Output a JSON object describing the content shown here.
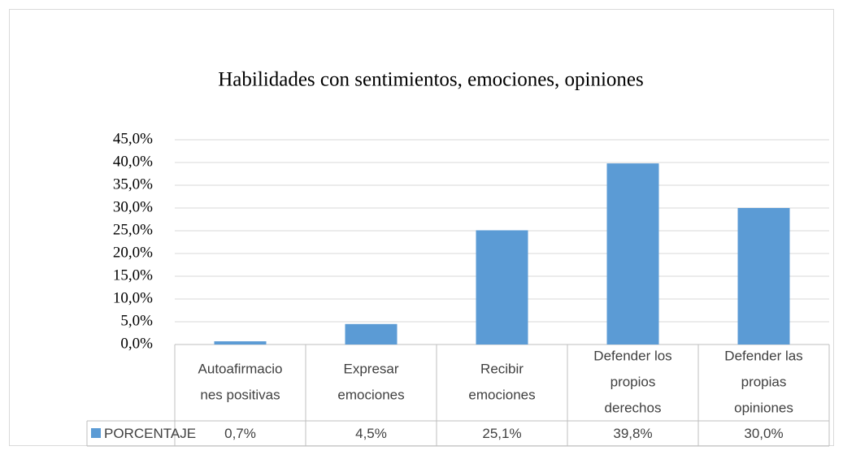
{
  "chart_data": {
    "type": "bar",
    "title": "Habilidades con sentimientos, emociones, opiniones",
    "categories": [
      [
        "Autoafirmacio",
        "nes positivas"
      ],
      [
        "Expresar",
        "emociones"
      ],
      [
        "Recibir",
        "emociones"
      ],
      [
        "Defender los",
        "propios",
        "derechos"
      ],
      [
        "Defender las",
        "propias",
        "opiniones"
      ]
    ],
    "series": [
      {
        "name": "PORCENTAJE",
        "color": "#5b9bd5",
        "values": [
          0.7,
          4.5,
          25.1,
          39.8,
          30.0
        ],
        "value_labels": [
          "0,7%",
          "4,5%",
          "25,1%",
          "39,8%",
          "30,0%"
        ]
      }
    ],
    "ylim": [
      0,
      45
    ],
    "yticks": [
      {
        "value": 0,
        "label": "0,0%"
      },
      {
        "value": 5,
        "label": "5,0%"
      },
      {
        "value": 10,
        "label": "10,0%"
      },
      {
        "value": 15,
        "label": "15,0%"
      },
      {
        "value": 20,
        "label": "20,0%"
      },
      {
        "value": 25,
        "label": "25,0%"
      },
      {
        "value": 30,
        "label": "30,0%"
      },
      {
        "value": 35,
        "label": "35,0%"
      },
      {
        "value": 40,
        "label": "40,0%"
      },
      {
        "value": 45,
        "label": "45,0%"
      }
    ],
    "grid": true
  }
}
